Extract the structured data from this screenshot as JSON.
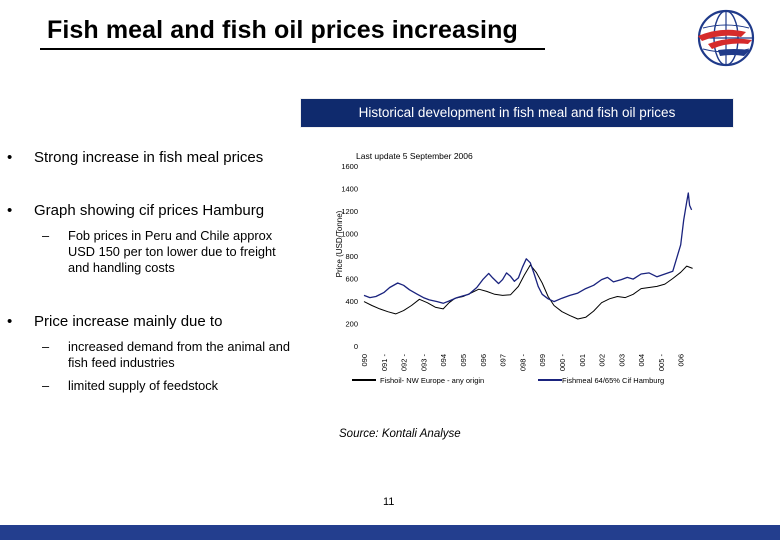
{
  "slide": {
    "title": "Fish meal and fish oil prices increasing",
    "banner": "Historical development in fish meal and fish oil prices",
    "bullets": [
      {
        "symbol": "•",
        "text": "Strong increase in fish meal prices"
      },
      {
        "symbol": "•",
        "text": "Graph showing cif prices Hamburg"
      },
      {
        "symbol": "•",
        "text": "Price increase mainly due to"
      }
    ],
    "sub_bullets": [
      {
        "symbol": "–",
        "text": "Fob prices in Peru and Chile approx USD 150 per ton lower due to freight and handling costs"
      },
      {
        "symbol": "–",
        "text": "increased demand from the animal and fish feed industries"
      },
      {
        "symbol": "–",
        "text": "limited supply of feedstock"
      }
    ],
    "source": "Source: Kontali Analyse",
    "page_number": "11"
  },
  "colors": {
    "banner": "#0f2a6d",
    "footer": "#233e8e",
    "fishoil": "#000000",
    "fishmeal": "#1a237e"
  },
  "chart_data": {
    "type": "line",
    "title": "Last update 5 September 2006",
    "xlabel": "",
    "ylabel": "Price (USD/Tonne)",
    "ylim": [
      0,
      1600
    ],
    "yticks": [
      0,
      200,
      400,
      600,
      800,
      1000,
      1200,
      1400,
      1600
    ],
    "xlim": [
      1990,
      2006.67
    ],
    "xticks": [
      {
        "x": 1990,
        "label": "090"
      },
      {
        "x": 1991,
        "label": "091 -"
      },
      {
        "x": 1992,
        "label": "092 -"
      },
      {
        "x": 1993,
        "label": "093 -"
      },
      {
        "x": 1994,
        "label": "094"
      },
      {
        "x": 1995,
        "label": "095"
      },
      {
        "x": 1996,
        "label": "096"
      },
      {
        "x": 1997,
        "label": "097"
      },
      {
        "x": 1998,
        "label": "098 -"
      },
      {
        "x": 1999,
        "label": "099"
      },
      {
        "x": 2000,
        "label": "000 -"
      },
      {
        "x": 2001,
        "label": "001"
      },
      {
        "x": 2002,
        "label": "002"
      },
      {
        "x": 2003,
        "label": "003"
      },
      {
        "x": 2004,
        "label": "004"
      },
      {
        "x": 2005,
        "label": "005 -"
      },
      {
        "x": 2006,
        "label": "006"
      }
    ],
    "series": [
      {
        "name": "Fishoil- NW Europe - any origin",
        "color": "#000000",
        "points": [
          [
            1990,
            395
          ],
          [
            1990.4,
            360
          ],
          [
            1990.8,
            330
          ],
          [
            1991.2,
            305
          ],
          [
            1991.6,
            285
          ],
          [
            1992,
            315
          ],
          [
            1992.4,
            360
          ],
          [
            1992.8,
            415
          ],
          [
            1993.2,
            385
          ],
          [
            1993.6,
            345
          ],
          [
            1994,
            330
          ],
          [
            1994.3,
            385
          ],
          [
            1994.6,
            425
          ],
          [
            1995,
            440
          ],
          [
            1995.4,
            470
          ],
          [
            1995.8,
            505
          ],
          [
            1996.2,
            485
          ],
          [
            1996.6,
            460
          ],
          [
            1997,
            450
          ],
          [
            1997.4,
            455
          ],
          [
            1997.8,
            530
          ],
          [
            1998.1,
            630
          ],
          [
            1998.4,
            720
          ],
          [
            1998.7,
            655
          ],
          [
            1999,
            560
          ],
          [
            1999.3,
            440
          ],
          [
            1999.6,
            360
          ],
          [
            2000,
            305
          ],
          [
            2000.4,
            270
          ],
          [
            2000.8,
            240
          ],
          [
            2001.2,
            255
          ],
          [
            2001.6,
            310
          ],
          [
            2002,
            385
          ],
          [
            2002.4,
            420
          ],
          [
            2002.8,
            440
          ],
          [
            2003.2,
            430
          ],
          [
            2003.6,
            460
          ],
          [
            2004,
            510
          ],
          [
            2004.4,
            520
          ],
          [
            2004.8,
            530
          ],
          [
            2005.2,
            550
          ],
          [
            2005.6,
            600
          ],
          [
            2006,
            655
          ],
          [
            2006.3,
            710
          ],
          [
            2006.6,
            690
          ]
        ]
      },
      {
        "name": "Fishmeal 64/65% Cif Hamburg",
        "color": "#1a237e",
        "points": [
          [
            1990,
            450
          ],
          [
            1990.3,
            430
          ],
          [
            1990.6,
            440
          ],
          [
            1991,
            475
          ],
          [
            1991.3,
            520
          ],
          [
            1991.7,
            560
          ],
          [
            1992,
            540
          ],
          [
            1992.3,
            500
          ],
          [
            1992.7,
            460
          ],
          [
            1993,
            430
          ],
          [
            1993.3,
            410
          ],
          [
            1993.7,
            395
          ],
          [
            1994,
            380
          ],
          [
            1994.3,
            400
          ],
          [
            1994.7,
            430
          ],
          [
            1995,
            445
          ],
          [
            1995.3,
            460
          ],
          [
            1995.7,
            520
          ],
          [
            1996,
            590
          ],
          [
            1996.3,
            645
          ],
          [
            1996.5,
            605
          ],
          [
            1996.8,
            555
          ],
          [
            1997,
            590
          ],
          [
            1997.2,
            650
          ],
          [
            1997.4,
            620
          ],
          [
            1997.6,
            575
          ],
          [
            1997.8,
            605
          ],
          [
            1998,
            700
          ],
          [
            1998.2,
            775
          ],
          [
            1998.4,
            740
          ],
          [
            1998.6,
            640
          ],
          [
            1998.8,
            530
          ],
          [
            1999,
            460
          ],
          [
            1999.3,
            420
          ],
          [
            1999.6,
            395
          ],
          [
            2000,
            425
          ],
          [
            2000.4,
            450
          ],
          [
            2000.8,
            470
          ],
          [
            2001.2,
            510
          ],
          [
            2001.6,
            540
          ],
          [
            2002,
            590
          ],
          [
            2002.3,
            610
          ],
          [
            2002.6,
            570
          ],
          [
            2003,
            590
          ],
          [
            2003.3,
            610
          ],
          [
            2003.6,
            595
          ],
          [
            2004,
            640
          ],
          [
            2004.4,
            650
          ],
          [
            2004.8,
            615
          ],
          [
            2005.2,
            640
          ],
          [
            2005.6,
            665
          ],
          [
            2006,
            900
          ],
          [
            2006.15,
            1120
          ],
          [
            2006.3,
            1280
          ],
          [
            2006.38,
            1360
          ],
          [
            2006.45,
            1250
          ],
          [
            2006.55,
            1210
          ]
        ]
      }
    ],
    "legend": "bottom"
  }
}
